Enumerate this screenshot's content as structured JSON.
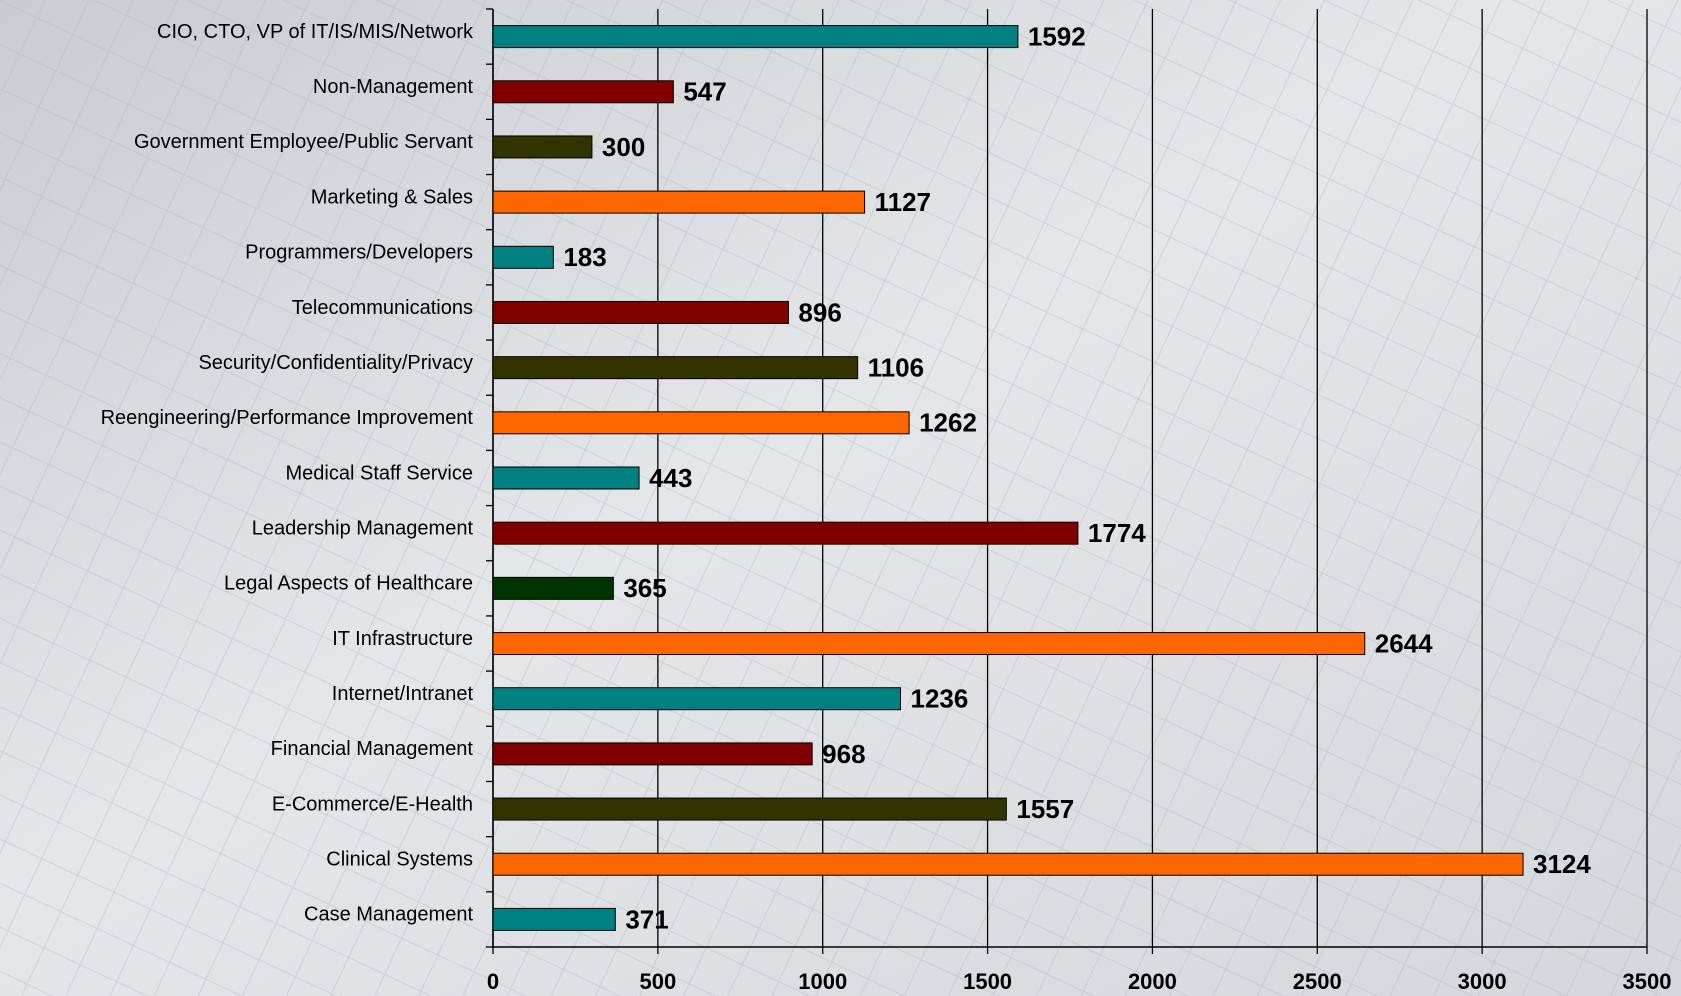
{
  "chart_data": {
    "type": "bar",
    "orientation": "horizontal",
    "categories": [
      "CIO, CTO, VP of IT/IS/MIS/Network",
      "Non-Management",
      "Government Employee/Public Servant",
      "Marketing & Sales",
      "Programmers/Developers",
      "Telecommunications",
      "Security/Confidentiality/Privacy",
      "Reengineering/Performance Improvement",
      "Medical Staff Service",
      "Leadership Management",
      "Legal Aspects of Healthcare",
      "IT Infrastructure",
      "Internet/Intranet",
      "Financial Management",
      "E-Commerce/E-Health",
      "Clinical Systems",
      "Case Management"
    ],
    "values": [
      1592,
      547,
      300,
      1127,
      183,
      896,
      1106,
      1262,
      443,
      1774,
      365,
      2644,
      1236,
      968,
      1557,
      3124,
      371
    ],
    "colors": [
      "#008080",
      "#800000",
      "#333300",
      "#ff6600",
      "#008080",
      "#800000",
      "#333300",
      "#ff6600",
      "#008080",
      "#800000",
      "#003300",
      "#ff6600",
      "#008080",
      "#800000",
      "#333300",
      "#ff6600",
      "#008080"
    ],
    "xlim": [
      0,
      3500
    ],
    "xticks": [
      0,
      500,
      1000,
      1500,
      2000,
      2500,
      3000,
      3500
    ],
    "grid": true
  }
}
